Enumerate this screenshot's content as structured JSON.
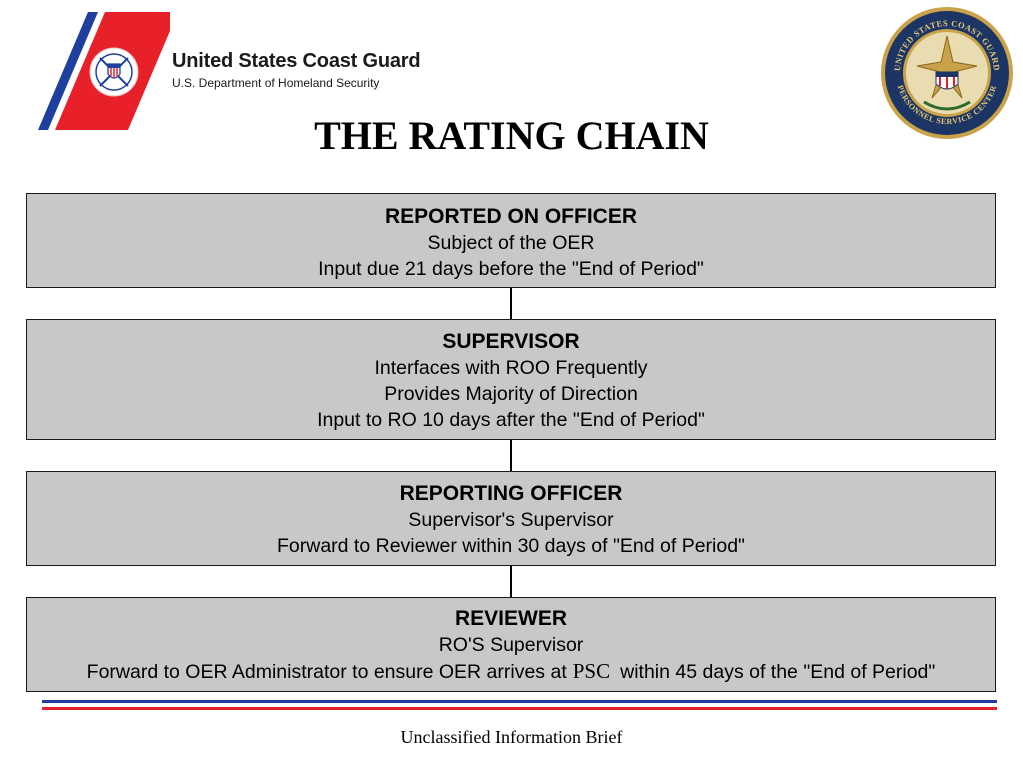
{
  "header": {
    "org_name": "United States Coast Guard",
    "org_dept": "U.S. Department of Homeland Security",
    "logo_icon": "coast-guard-emblem-icon",
    "seal_icon": "personnel-service-center-seal-icon",
    "seal_text_top": "UNITED STATES COAST GUARD",
    "seal_text_bottom": "PERSONNEL SERVICE CENTER",
    "colors": {
      "red": "#e8202a",
      "blue": "#1f3f9e",
      "seal_gold": "#c9a24a",
      "seal_navy": "#1c3564"
    }
  },
  "title": "THE RATING CHAIN",
  "chain": [
    {
      "heading": "REPORTED ON OFFICER",
      "lines": [
        "Subject of the OER",
        "Input due 21 days before the \"End of Period\""
      ]
    },
    {
      "heading": "SUPERVISOR",
      "lines": [
        "Interfaces with ROO Frequently",
        "Provides Majority of Direction",
        "Input  to RO 10 days after the \"End of Period\""
      ]
    },
    {
      "heading": "REPORTING OFFICER",
      "lines": [
        "Supervisor's Supervisor",
        "Forward to Reviewer within 30 days of \"End of Period\""
      ]
    },
    {
      "heading": "REVIEWER",
      "lines": [
        "RO'S Supervisor"
      ],
      "last_line": {
        "before": "Forward to OER Administrator to ensure OER arrives at",
        "psc": "PSC",
        "after": "within 45 days of the \"End of Period\""
      }
    }
  ],
  "box_fill": "#c8c8c8",
  "footer": "Unclassified Information Brief"
}
